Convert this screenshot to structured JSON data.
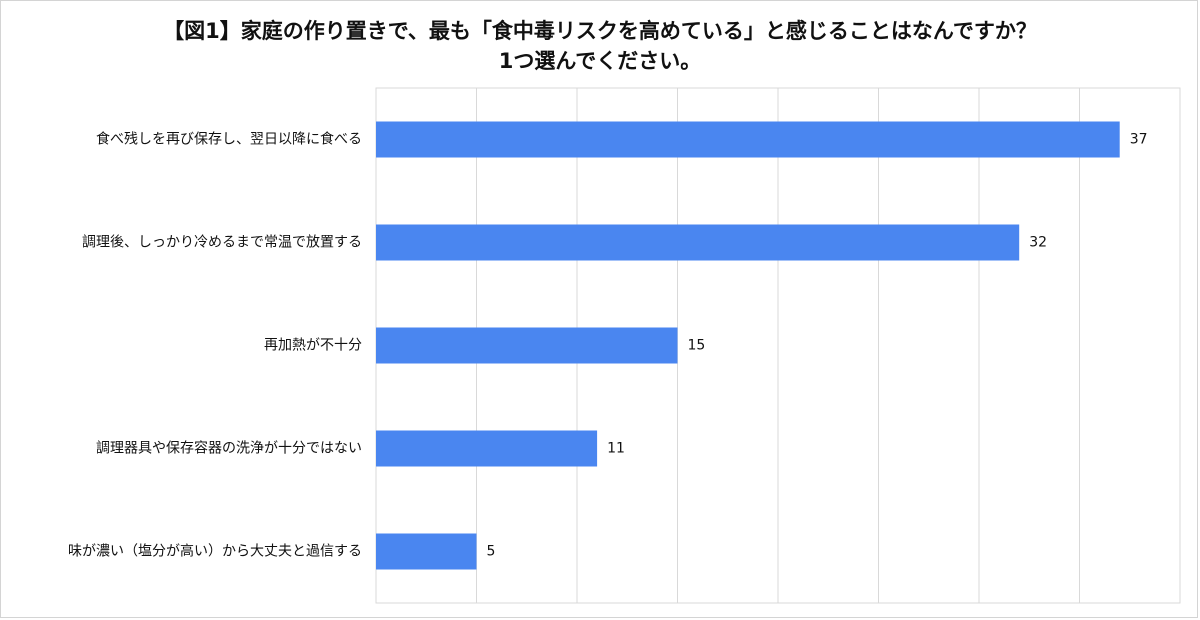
{
  "chart_data": {
    "type": "bar",
    "orientation": "horizontal",
    "title_lines": [
      "【図1】家庭の作り置きで、最も「食中毒リスクを高めている」と感じることはなんですか？",
      "1つ選んでください。"
    ],
    "categories": [
      "食べ残しを再び保存し、翌日以降に食べる",
      "調理後、しっかり冷めるまで常温で放置する",
      "再加熱が不十分",
      "調理器具や保存容器の洗浄が十分ではない",
      "味が濃い（塩分が高い）から大丈夫と過信する"
    ],
    "values": [
      37,
      32,
      15,
      11,
      5
    ],
    "xlim": [
      0,
      40
    ],
    "grid": true,
    "bar_color": "#4a86f0",
    "xlabel": "",
    "ylabel": ""
  }
}
